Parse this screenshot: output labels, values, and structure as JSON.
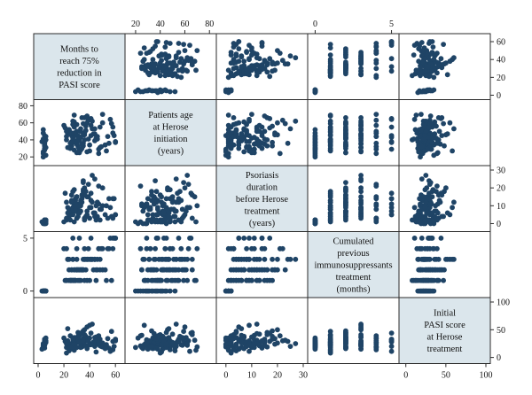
{
  "chart_data": {
    "type": "scatter",
    "subtype": "scatterplot-matrix",
    "variables": [
      {
        "key": "months",
        "label_lines": [
          "Months to",
          "reach 75%",
          "reduction in",
          "PASI score"
        ],
        "range": [
          0,
          64
        ],
        "ticks": [
          0,
          20,
          40,
          60
        ]
      },
      {
        "key": "age",
        "label_lines": [
          "Patients age",
          "at Herose",
          "initiation",
          "(years)"
        ],
        "range": [
          15,
          82
        ],
        "ticks": [
          20,
          40,
          60,
          80
        ]
      },
      {
        "key": "duration",
        "label_lines": [
          "Psoriasis",
          "duration",
          "before Herose",
          "treatment",
          "(years)"
        ],
        "range": [
          -2,
          30
        ],
        "ticks": [
          0,
          10,
          20,
          30
        ]
      },
      {
        "key": "immuno",
        "label_lines": [
          "Cumulated",
          "previous",
          "immunosuppressants",
          "treatment",
          "(months)"
        ],
        "range": [
          -0.2,
          5.2
        ],
        "ticks": [
          0,
          5
        ]
      },
      {
        "key": "pasi",
        "label_lines": [
          "Initial",
          "PASI score",
          "at Herose",
          "treatment"
        ],
        "range": [
          -3,
          100
        ],
        "ticks": [
          0,
          50,
          100
        ]
      }
    ],
    "axis_ticks": {
      "top": [
        {
          "variable": "age",
          "labels": [
            "20",
            "40",
            "60",
            "80"
          ]
        },
        {
          "variable": "immuno",
          "labels": [
            "0",
            "5"
          ]
        }
      ],
      "bottom": [
        {
          "variable": "months",
          "labels": [
            "0",
            "20",
            "40",
            "60"
          ]
        },
        {
          "variable": "duration",
          "labels": [
            "0",
            "10",
            "20",
            "30"
          ]
        },
        {
          "variable": "pasi",
          "labels": [
            "0",
            "50",
            "100"
          ]
        }
      ],
      "left": [
        {
          "variable": "age",
          "labels": [
            "20",
            "40",
            "60",
            "80"
          ]
        },
        {
          "variable": "immuno",
          "labels": [
            "0",
            "5"
          ]
        }
      ],
      "right": [
        {
          "variable": "months",
          "labels": [
            "0",
            "20",
            "40",
            "60"
          ]
        },
        {
          "variable": "duration",
          "labels": [
            "0",
            "10",
            "20",
            "30"
          ]
        },
        {
          "variable": "pasi",
          "labels": [
            "0",
            "50",
            "100"
          ]
        }
      ]
    },
    "observations": {
      "months": [
        4,
        5,
        5,
        6,
        4,
        6,
        5,
        3,
        5,
        4,
        6,
        5,
        4,
        5,
        4,
        6,
        5,
        5,
        4,
        5,
        22,
        24,
        25,
        26,
        26,
        27,
        28,
        28,
        29,
        30,
        30,
        31,
        32,
        33,
        34,
        35,
        36,
        38,
        40,
        42,
        44,
        46,
        48,
        50,
        55,
        58,
        20,
        27,
        32,
        41,
        45,
        52,
        24,
        29,
        35,
        47,
        57,
        23,
        31,
        38,
        26,
        44,
        22,
        33,
        28,
        36,
        30,
        48,
        25,
        34,
        27,
        39,
        29,
        43,
        26,
        37,
        31,
        53,
        24,
        35,
        28,
        46,
        30,
        40,
        27,
        33,
        32,
        50,
        23,
        36,
        59,
        60,
        21,
        45,
        38,
        42,
        34,
        37,
        29,
        31,
        26,
        41,
        54,
        47,
        56,
        60,
        28,
        33,
        25,
        39,
        30,
        35,
        44,
        49,
        22,
        32,
        27,
        36,
        41,
        58
      ],
      "age": [
        20,
        28,
        34,
        40,
        48,
        22,
        30,
        38,
        45,
        24,
        31,
        42,
        26,
        36,
        52,
        44,
        29,
        33,
        41,
        37,
        40,
        52,
        30,
        45,
        38,
        62,
        28,
        55,
        48,
        35,
        58,
        42,
        25,
        50,
        66,
        33,
        46,
        60,
        27,
        53,
        39,
        44,
        31,
        70,
        36,
        48,
        57,
        43,
        29,
        65,
        41,
        34,
        51,
        38,
        46,
        24,
        59,
        47,
        32,
        68,
        37,
        53,
        44,
        28,
        61,
        40,
        35,
        55,
        49,
        30,
        42,
        63,
        38,
        47,
        33,
        56,
        45,
        27,
        52,
        36,
        69,
        41,
        50,
        34,
        58,
        43,
        39,
        60,
        31,
        48,
        45,
        37,
        54,
        42,
        26,
        62,
        35,
        51,
        46,
        40,
        33,
        57,
        44,
        29,
        64,
        38,
        48,
        53,
        36,
        41,
        25,
        59,
        47,
        32,
        50,
        43,
        37,
        66,
        45,
        55
      ],
      "duration": [
        1,
        0,
        2,
        1,
        1,
        0,
        2,
        1,
        0,
        1,
        2,
        1,
        0,
        1,
        1,
        2,
        0,
        1,
        1,
        2,
        2,
        4,
        5,
        6,
        8,
        9,
        10,
        12,
        14,
        15,
        3,
        7,
        11,
        13,
        16,
        18,
        20,
        5,
        9,
        12,
        6,
        4,
        8,
        10,
        14,
        3,
        1,
        7,
        11,
        17,
        2,
        5,
        8,
        13,
        19,
        21,
        4,
        6,
        9,
        15,
        12,
        25,
        3,
        10,
        7,
        16,
        11,
        2,
        8,
        14,
        5,
        22,
        9,
        6,
        13,
        18,
        4,
        10,
        7,
        24,
        1,
        12,
        15,
        3,
        8,
        11,
        6,
        20,
        9,
        2,
        14,
        5,
        17,
        10,
        7,
        27,
        12,
        4,
        8,
        6,
        16,
        13,
        3,
        11,
        9,
        5,
        19,
        7,
        2,
        15,
        10,
        23,
        4,
        8,
        12,
        6,
        18,
        3,
        9,
        14
      ],
      "immuno": [
        0,
        0,
        0,
        0,
        0,
        0,
        0,
        0,
        0,
        0,
        0,
        0,
        0,
        0,
        0,
        0,
        0,
        0,
        0,
        0,
        1,
        1,
        1,
        1,
        1,
        1,
        1,
        1,
        2,
        2,
        2,
        2,
        2,
        2,
        2,
        2,
        3,
        3,
        3,
        3,
        3,
        3,
        3,
        4,
        4,
        4,
        4,
        5,
        5,
        5,
        1,
        2,
        3,
        1,
        2,
        4,
        1,
        3,
        2,
        1,
        2,
        3,
        4,
        1,
        2,
        1,
        3,
        2,
        1,
        2,
        3,
        4,
        1,
        2,
        1,
        3,
        2,
        1,
        2,
        3,
        1,
        2,
        4,
        1,
        3,
        2,
        1,
        2,
        3,
        4,
        5,
        5,
        1,
        2,
        3,
        3,
        2,
        2,
        1,
        1,
        2,
        3,
        4,
        4,
        5,
        5,
        2,
        2,
        1,
        3,
        2,
        2,
        3,
        4,
        1,
        2,
        1,
        3,
        3,
        5
      ],
      "pasi": [
        18,
        22,
        25,
        30,
        20,
        35,
        28,
        15,
        24,
        21,
        27,
        33,
        19,
        26,
        23,
        29,
        31,
        17,
        25,
        22,
        8,
        12,
        15,
        18,
        20,
        22,
        25,
        28,
        30,
        33,
        36,
        38,
        40,
        42,
        45,
        48,
        50,
        55,
        58,
        60,
        26,
        24,
        21,
        19,
        17,
        14,
        35,
        28,
        32,
        44,
        10,
        16,
        23,
        27,
        34,
        39,
        47,
        52,
        29,
        31,
        25,
        20,
        18,
        22,
        36,
        41,
        27,
        33,
        24,
        19,
        15,
        30,
        26,
        28,
        21,
        38,
        45,
        23,
        17,
        29,
        13,
        31,
        27,
        35,
        22,
        18,
        40,
        26,
        30,
        24,
        20,
        33,
        29,
        37,
        16,
        25,
        43,
        21,
        28,
        32,
        19,
        23,
        34,
        27,
        11,
        30,
        24,
        26,
        39,
        22,
        18,
        31,
        36,
        20,
        25,
        28,
        33,
        41,
        24,
        29
      ]
    }
  }
}
